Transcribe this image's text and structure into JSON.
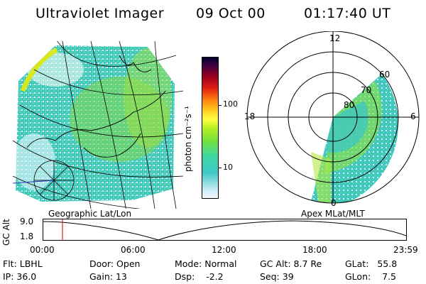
{
  "header": {
    "instrument": "Ultraviolet Imager",
    "date": "09 Oct 00",
    "time": "01:17:40 UT"
  },
  "panels": {
    "geo_label": "Geographic Lat/Lon",
    "apex_label": "Apex MLat/MLT"
  },
  "colorbar": {
    "units": "photon cm⁻²s⁻¹",
    "ticks": [
      "100",
      "10"
    ],
    "scale": "log"
  },
  "polar": {
    "mlt_labels": {
      "top": "12",
      "left": "18",
      "right": "6",
      "bottom": "0"
    },
    "lat_labels": [
      "80",
      "70",
      "60"
    ]
  },
  "altitude_plot": {
    "ylabel": "GC Alt",
    "yticks": [
      "9.0",
      "1.8"
    ],
    "xticks": [
      "00:00",
      "06:00",
      "12:00",
      "18:00",
      "23:59"
    ],
    "marker_time": "01:17:40"
  },
  "info": {
    "row1": [
      {
        "label": "Flt:",
        "value": "LBHL"
      },
      {
        "label": "Door:",
        "value": "Open"
      },
      {
        "label": "Mode:",
        "value": "Normal"
      },
      {
        "label": "GC Alt:",
        "value": "8.7 Re"
      },
      {
        "label": "GLat:",
        "value": "55.8"
      }
    ],
    "row2": [
      {
        "label": "IP:",
        "value": "36.0"
      },
      {
        "label": "Gain:",
        "value": "13"
      },
      {
        "label": "Dsp:",
        "value": "-2.2"
      },
      {
        "label": "Seq:",
        "value": "39"
      },
      {
        "label": "GLon:",
        "value": "7.5"
      }
    ]
  },
  "colors": {
    "marker": "#e02020",
    "palette_low": "#e8f4ff",
    "palette_high": "#000030"
  }
}
